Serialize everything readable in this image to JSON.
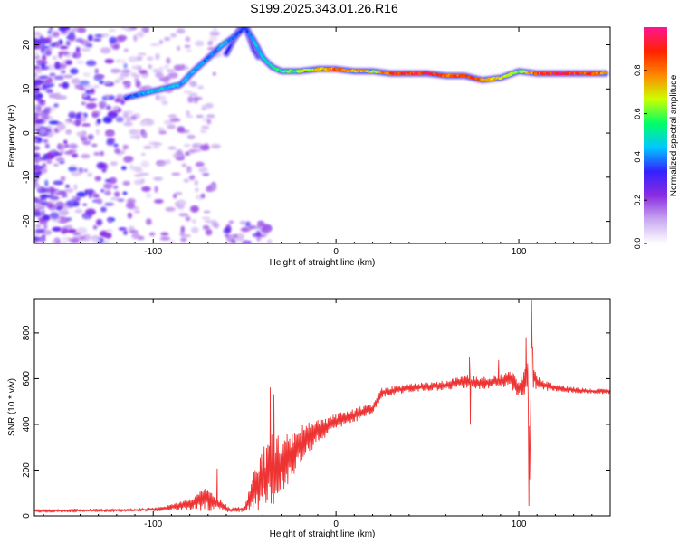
{
  "figure_title": "S199.2025.343.01.26.R16",
  "chart_data": [
    {
      "type": "heatmap",
      "name": "spectrogram",
      "xlabel": "Height of straight line (km)",
      "ylabel": "Frequency (Hz)",
      "xlim": [
        -165,
        150
      ],
      "ylim": [
        -25,
        24
      ],
      "xticks": [
        -100,
        0,
        100
      ],
      "yticks": [
        -20,
        -10,
        0,
        10,
        20
      ],
      "colorbar": {
        "label": "Normalized spectral amplitude",
        "range": [
          0,
          1
        ],
        "ticks": [
          "0.0",
          "0.2",
          "0.4",
          "0.6",
          "0.8"
        ],
        "tick_values": [
          0,
          0.2,
          0.4,
          0.6,
          0.8
        ],
        "colors": [
          "#ffffff",
          "#c8a8f0",
          "#8a2be2",
          "#3322ff",
          "#00c8ff",
          "#00ff66",
          "#ccff00",
          "#ff8800",
          "#ff2200",
          "#ff1493"
        ]
      },
      "ridge": {
        "x": [
          -115,
          -105,
          -95,
          -85,
          -78,
          -70,
          -62,
          -55,
          -50,
          -45,
          -40,
          -35,
          -30,
          -20,
          -10,
          0,
          10,
          20,
          30,
          40,
          50,
          60,
          70,
          80,
          90,
          100,
          110,
          120,
          130,
          140,
          148
        ],
        "y": [
          8,
          9,
          10,
          11,
          14,
          17,
          20,
          22,
          24,
          21,
          17,
          15,
          14,
          14,
          14.5,
          14.5,
          14,
          14,
          13.5,
          13.5,
          13.5,
          13,
          13,
          12,
          12.5,
          14,
          13.5,
          13.5,
          13.5,
          13.5,
          13.5
        ],
        "amplitude": [
          0.35,
          0.45,
          0.5,
          0.45,
          0.45,
          0.4,
          0.45,
          0.4,
          0.35,
          0.45,
          0.5,
          0.55,
          0.6,
          0.65,
          0.75,
          0.85,
          0.8,
          0.7,
          0.9,
          0.95,
          0.95,
          0.85,
          0.9,
          0.85,
          0.7,
          0.65,
          0.9,
          0.95,
          0.95,
          0.9,
          0.85
        ]
      },
      "secondary_ridge": {
        "x": [
          -60,
          -55,
          -50,
          -45,
          -42
        ],
        "y": [
          18,
          22,
          25,
          19,
          17
        ],
        "amplitude": [
          0.3,
          0.35,
          0.35,
          0.3,
          0.3
        ]
      }
    },
    {
      "type": "line",
      "name": "snr",
      "xlabel": "Height of straight line (km)",
      "ylabel": "SNR (10 * v/v)",
      "xlim": [
        -165,
        150
      ],
      "ylim": [
        0,
        950
      ],
      "xticks": [
        -100,
        0,
        100
      ],
      "yticks": [
        0,
        200,
        400,
        600,
        800
      ],
      "color": "#ee3333",
      "envelope": {
        "x": [
          -165,
          -110,
          -95,
          -85,
          -70,
          -58,
          -50,
          -45,
          -40,
          -35,
          -30,
          -25,
          -20,
          -15,
          -10,
          -5,
          0,
          10,
          20,
          25,
          40,
          60,
          70,
          80,
          90,
          95,
          100,
          103,
          105,
          106,
          107,
          108,
          110,
          120,
          130,
          140,
          150
        ],
        "mean": [
          22,
          25,
          30,
          45,
          75,
          25,
          30,
          110,
          160,
          200,
          230,
          260,
          300,
          340,
          370,
          390,
          410,
          440,
          470,
          540,
          560,
          570,
          590,
          580,
          590,
          600,
          560,
          580,
          640,
          150,
          850,
          620,
          580,
          560,
          550,
          545,
          545
        ],
        "spread": [
          12,
          12,
          15,
          30,
          90,
          15,
          20,
          160,
          230,
          260,
          230,
          190,
          150,
          120,
          90,
          70,
          60,
          50,
          40,
          35,
          30,
          35,
          50,
          45,
          50,
          60,
          80,
          90,
          150,
          100,
          100,
          100,
          50,
          25,
          20,
          18,
          18
        ]
      },
      "spikes": [
        {
          "x": 107,
          "y": 940
        },
        {
          "x": 105.5,
          "y": 45
        },
        {
          "x": 104,
          "y": 780
        },
        {
          "x": 73,
          "y": 695
        },
        {
          "x": 73.5,
          "y": 400
        },
        {
          "x": 89,
          "y": 680
        },
        {
          "x": -36,
          "y": 560
        },
        {
          "x": -34,
          "y": 530
        },
        {
          "x": -65,
          "y": 205
        }
      ]
    }
  ]
}
